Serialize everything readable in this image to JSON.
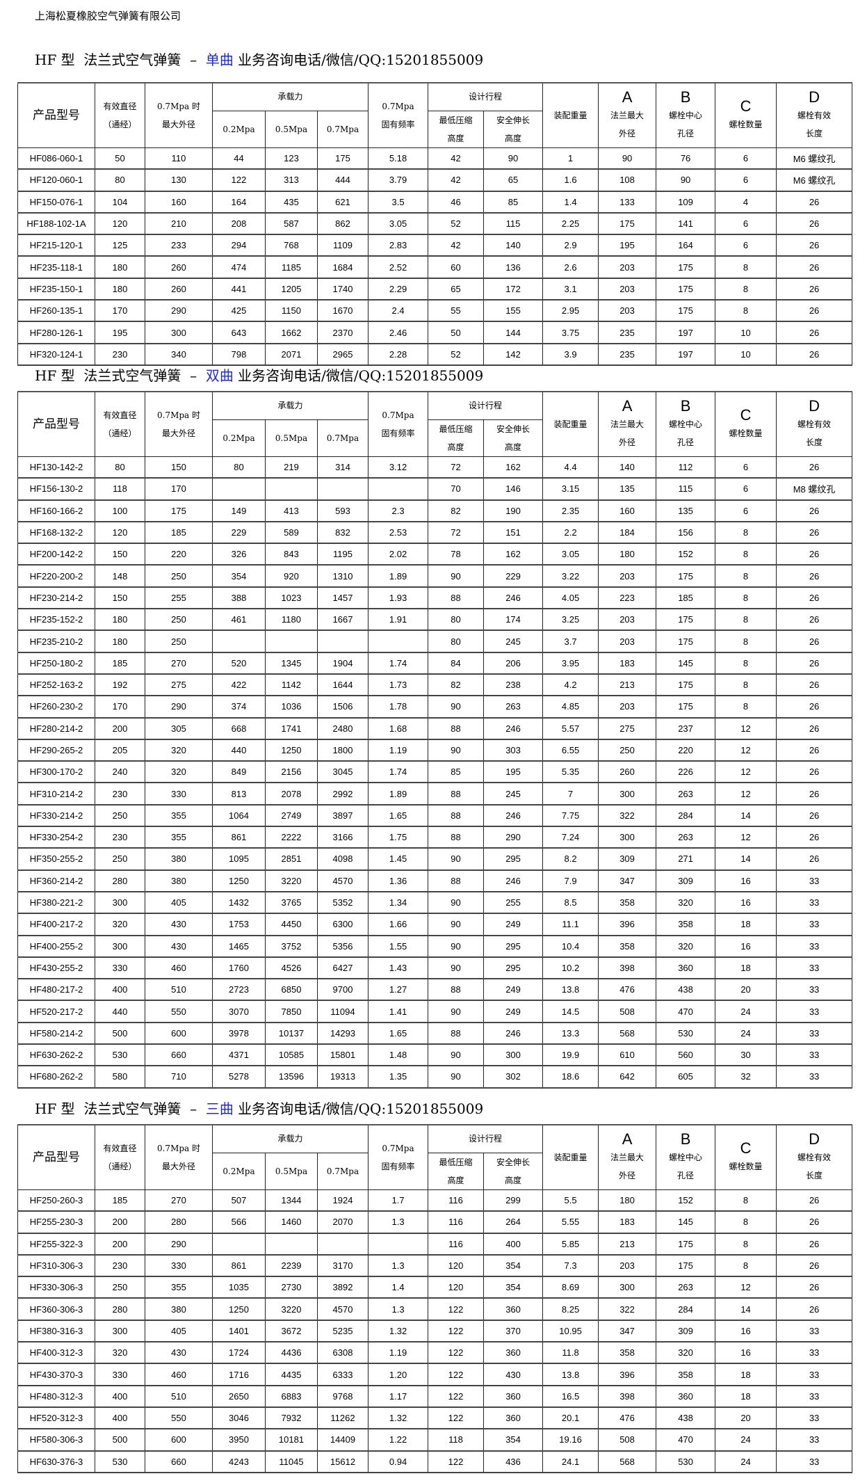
{
  "company": "上海松夏橡胶空气弹簧有限公司",
  "header": {
    "model": "产品型号",
    "diameter": [
      "有效直径",
      "（通经）"
    ],
    "max_od": [
      "0.7Mpa 时",
      "最大外径"
    ],
    "load": "承载力",
    "load_02": "0.2Mpa",
    "load_05": "0.5Mpa",
    "load_07": "0.7Mpa",
    "freq": [
      "0.7Mpa",
      "固有频率"
    ],
    "stroke": "设计行程",
    "min_height": [
      "最低压缩",
      "高度"
    ],
    "safe_ext": [
      "安全伸长",
      "高度"
    ],
    "weight": "装配重量",
    "a": [
      "A",
      "法兰最大",
      "外径"
    ],
    "b": [
      "B",
      "螺栓中心",
      "孔径"
    ],
    "c": [
      "C",
      "螺栓数量"
    ],
    "d": [
      "D",
      "螺栓有效",
      "长度"
    ]
  },
  "accent_color": "#1f2bd6",
  "sections": [
    {
      "title_prefix": "HF 型  法兰式空气弹簧  –  ",
      "variant": "单曲",
      "contact": " 业务咨询电话/微信/QQ:15201855009",
      "rows": [
        [
          "HF086-060-1",
          "50",
          "110",
          "44",
          "123",
          "175",
          "5.18",
          "42",
          "90",
          "1",
          "90",
          "76",
          "6",
          "M6 螺纹孔"
        ],
        [
          "HF120-060-1",
          "80",
          "130",
          "122",
          "313",
          "444",
          "3.79",
          "42",
          "65",
          "1.6",
          "108",
          "90",
          "6",
          "M6 螺纹孔"
        ],
        [
          "HF150-076-1",
          "104",
          "160",
          "164",
          "435",
          "621",
          "3.5",
          "46",
          "85",
          "1.4",
          "133",
          "109",
          "4",
          "26"
        ],
        [
          "HF188-102-1A",
          "120",
          "210",
          "208",
          "587",
          "862",
          "3.05",
          "52",
          "115",
          "2.25",
          "175",
          "141",
          "6",
          "26"
        ],
        [
          "HF215-120-1",
          "125",
          "233",
          "294",
          "768",
          "1109",
          "2.83",
          "42",
          "140",
          "2.9",
          "195",
          "164",
          "6",
          "26"
        ],
        [
          "HF235-118-1",
          "180",
          "260",
          "474",
          "1185",
          "1684",
          "2.52",
          "60",
          "136",
          "2.6",
          "203",
          "175",
          "8",
          "26"
        ],
        [
          "HF235-150-1",
          "180",
          "260",
          "441",
          "1205",
          "1740",
          "2.29",
          "65",
          "172",
          "3.1",
          "203",
          "175",
          "8",
          "26"
        ],
        [
          "HF260-135-1",
          "170",
          "290",
          "425",
          "1150",
          "1670",
          "2.4",
          "55",
          "155",
          "2.95",
          "203",
          "175",
          "8",
          "26"
        ],
        [
          "HF280-126-1",
          "195",
          "300",
          "643",
          "1662",
          "2370",
          "2.46",
          "50",
          "144",
          "3.75",
          "235",
          "197",
          "10",
          "26"
        ],
        [
          "HF320-124-1",
          "230",
          "340",
          "798",
          "2071",
          "2965",
          "2.28",
          "52",
          "142",
          "3.9",
          "235",
          "197",
          "10",
          "26"
        ]
      ]
    },
    {
      "title_prefix": "HF 型  法兰式空气弹簧  –  ",
      "variant": "双曲",
      "contact": " 业务咨询电话/微信/QQ:15201855009",
      "rows": [
        [
          "HF130-142-2",
          "80",
          "150",
          "80",
          "219",
          "314",
          "3.12",
          "72",
          "162",
          "4.4",
          "140",
          "112",
          "6",
          "26"
        ],
        [
          "HF156-130-2",
          "118",
          "170",
          "",
          "",
          "",
          "",
          "70",
          "146",
          "3.15",
          "135",
          "115",
          "6",
          "M8 螺纹孔"
        ],
        [
          "HF160-166-2",
          "100",
          "175",
          "149",
          "413",
          "593",
          "2.3",
          "82",
          "190",
          "2.35",
          "160",
          "135",
          "6",
          "26"
        ],
        [
          "HF168-132-2",
          "120",
          "185",
          "229",
          "589",
          "832",
          "2.53",
          "72",
          "151",
          "2.2",
          "184",
          "156",
          "8",
          "26"
        ],
        [
          "HF200-142-2",
          "150",
          "220",
          "326",
          "843",
          "1195",
          "2.02",
          "78",
          "162",
          "3.05",
          "180",
          "152",
          "8",
          "26"
        ],
        [
          "HF220-200-2",
          "148",
          "250",
          "354",
          "920",
          "1310",
          "1.89",
          "90",
          "229",
          "3.22",
          "203",
          "175",
          "8",
          "26"
        ],
        [
          "HF230-214-2",
          "150",
          "255",
          "388",
          "1023",
          "1457",
          "1.93",
          "88",
          "246",
          "4.05",
          "223",
          "185",
          "8",
          "26"
        ],
        [
          "HF235-152-2",
          "180",
          "250",
          "461",
          "1180",
          "1667",
          "1.91",
          "80",
          "174",
          "3.25",
          "203",
          "175",
          "8",
          "26"
        ],
        [
          "HF235-210-2",
          "180",
          "250",
          "",
          "",
          "",
          "",
          "80",
          "245",
          "3.7",
          "203",
          "175",
          "8",
          "26"
        ],
        [
          "HF250-180-2",
          "185",
          "270",
          "520",
          "1345",
          "1904",
          "1.74",
          "84",
          "206",
          "3.95",
          "183",
          "145",
          "8",
          "26"
        ],
        [
          "HF252-163-2",
          "192",
          "275",
          "422",
          "1142",
          "1644",
          "1.73",
          "82",
          "238",
          "4.2",
          "213",
          "175",
          "8",
          "26"
        ],
        [
          "HF260-230-2",
          "170",
          "290",
          "374",
          "1036",
          "1506",
          "1.78",
          "90",
          "263",
          "4.85",
          "203",
          "175",
          "8",
          "26"
        ],
        [
          "HF280-214-2",
          "200",
          "305",
          "668",
          "1741",
          "2480",
          "1.68",
          "88",
          "246",
          "5.57",
          "275",
          "237",
          "12",
          "26"
        ],
        [
          "HF290-265-2",
          "205",
          "320",
          "440",
          "1250",
          "1800",
          "1.19",
          "90",
          "303",
          "6.55",
          "250",
          "220",
          "12",
          "26"
        ],
        [
          "HF300-170-2",
          "240",
          "320",
          "849",
          "2156",
          "3045",
          "1.74",
          "85",
          "195",
          "5.35",
          "260",
          "226",
          "12",
          "26"
        ],
        [
          "HF310-214-2",
          "230",
          "330",
          "813",
          "2078",
          "2992",
          "1.89",
          "88",
          "245",
          "7",
          "300",
          "263",
          "12",
          "26"
        ],
        [
          "HF330-214-2",
          "250",
          "355",
          "1064",
          "2749",
          "3897",
          "1.65",
          "88",
          "246",
          "7.75",
          "322",
          "284",
          "14",
          "26"
        ],
        [
          "HF330-254-2",
          "230",
          "355",
          "861",
          "2222",
          "3166",
          "1.75",
          "88",
          "290",
          "7.24",
          "300",
          "263",
          "12",
          "26"
        ],
        [
          "HF350-255-2",
          "250",
          "380",
          "1095",
          "2851",
          "4098",
          "1.45",
          "90",
          "295",
          "8.2",
          "309",
          "271",
          "14",
          "26"
        ],
        [
          "HF360-214-2",
          "280",
          "380",
          "1250",
          "3220",
          "4570",
          "1.36",
          "88",
          "246",
          "7.9",
          "347",
          "309",
          "16",
          "33"
        ],
        [
          "HF380-221-2",
          "300",
          "405",
          "1432",
          "3765",
          "5352",
          "1.34",
          "90",
          "255",
          "8.5",
          "358",
          "320",
          "16",
          "33"
        ],
        [
          "HF400-217-2",
          "320",
          "430",
          "1753",
          "4450",
          "6300",
          "1.66",
          "90",
          "249",
          "11.1",
          "396",
          "358",
          "18",
          "33"
        ],
        [
          "HF400-255-2",
          "300",
          "430",
          "1465",
          "3752",
          "5356",
          "1.55",
          "90",
          "295",
          "10.4",
          "358",
          "320",
          "16",
          "33"
        ],
        [
          "HF430-255-2",
          "330",
          "460",
          "1760",
          "4526",
          "6427",
          "1.43",
          "90",
          "295",
          "10.2",
          "398",
          "360",
          "18",
          "33"
        ],
        [
          "HF480-217-2",
          "400",
          "510",
          "2723",
          "6850",
          "9700",
          "1.27",
          "88",
          "249",
          "13.8",
          "476",
          "438",
          "20",
          "33"
        ],
        [
          "HF520-217-2",
          "440",
          "550",
          "3070",
          "7850",
          "11094",
          "1.41",
          "90",
          "249",
          "14.5",
          "508",
          "470",
          "24",
          "33"
        ],
        [
          "HF580-214-2",
          "500",
          "600",
          "3978",
          "10137",
          "14293",
          "1.65",
          "88",
          "246",
          "13.3",
          "568",
          "530",
          "24",
          "33"
        ],
        [
          "HF630-262-2",
          "530",
          "660",
          "4371",
          "10585",
          "15801",
          "1.48",
          "90",
          "300",
          "19.9",
          "610",
          "560",
          "30",
          "33"
        ],
        [
          "HF680-262-2",
          "580",
          "710",
          "5278",
          "13596",
          "19313",
          "1.35",
          "90",
          "302",
          "18.6",
          "642",
          "605",
          "32",
          "33"
        ]
      ]
    },
    {
      "title_prefix": "HF 型  法兰式空气弹簧  –  ",
      "variant": "三曲",
      "contact": " 业务咨询电话/微信/QQ:15201855009",
      "rows": [
        [
          "HF250-260-3",
          "185",
          "270",
          "507",
          "1344",
          "1924",
          "1.7",
          "116",
          "299",
          "5.5",
          "180",
          "152",
          "8",
          "26"
        ],
        [
          "HF255-230-3",
          "200",
          "280",
          "566",
          "1460",
          "2070",
          "1.3",
          "116",
          "264",
          "5.55",
          "183",
          "145",
          "8",
          "26"
        ],
        [
          "HF255-322-3",
          "200",
          "290",
          "",
          "",
          "",
          "",
          "116",
          "400",
          "5.85",
          "213",
          "175",
          "8",
          "26"
        ],
        [
          "HF310-306-3",
          "230",
          "330",
          "861",
          "2239",
          "3170",
          "1.3",
          "120",
          "354",
          "7.3",
          "203",
          "175",
          "8",
          "26"
        ],
        [
          "HF330-306-3",
          "250",
          "355",
          "1035",
          "2730",
          "3892",
          "1.4",
          "120",
          "354",
          "8.69",
          "300",
          "263",
          "12",
          "26"
        ],
        [
          "HF360-306-3",
          "280",
          "380",
          "1250",
          "3220",
          "4570",
          "1.3",
          "122",
          "360",
          "8.25",
          "322",
          "284",
          "14",
          "26"
        ],
        [
          "HF380-316-3",
          "300",
          "405",
          "1401",
          "3672",
          "5235",
          "1.32",
          "122",
          "370",
          "10.95",
          "347",
          "309",
          "16",
          "33"
        ],
        [
          "HF400-312-3",
          "320",
          "430",
          "1724",
          "4436",
          "6308",
          "1.19",
          "122",
          "360",
          "11.8",
          "358",
          "320",
          "16",
          "33"
        ],
        [
          "HF430-370-3",
          "330",
          "460",
          "1716",
          "4435",
          "6333",
          "1.20",
          "122",
          "430",
          "13.8",
          "396",
          "358",
          "18",
          "33"
        ],
        [
          "HF480-312-3",
          "400",
          "510",
          "2650",
          "6883",
          "9768",
          "1.17",
          "122",
          "360",
          "16.5",
          "398",
          "360",
          "18",
          "33"
        ],
        [
          "HF520-312-3",
          "400",
          "550",
          "3046",
          "7932",
          "11262",
          "1.32",
          "122",
          "360",
          "20.1",
          "476",
          "438",
          "20",
          "33"
        ],
        [
          "HF580-306-3",
          "500",
          "600",
          "3950",
          "10181",
          "14409",
          "1.22",
          "118",
          "354",
          "19.16",
          "508",
          "470",
          "24",
          "33"
        ],
        [
          "HF630-376-3",
          "530",
          "660",
          "4243",
          "11045",
          "15612",
          "0.94",
          "122",
          "436",
          "24.1",
          "568",
          "530",
          "24",
          "33"
        ]
      ]
    }
  ]
}
